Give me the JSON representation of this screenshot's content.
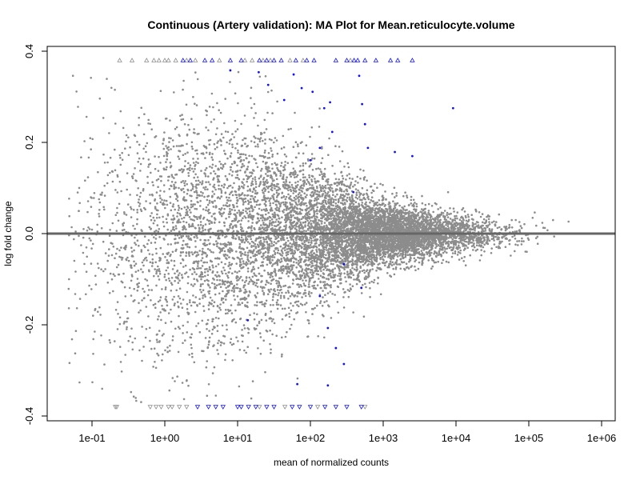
{
  "chart_data": {
    "type": "scatter",
    "title": "Continuous (Artery validation): MA Plot for Mean.reticulocyte.volume",
    "xlabel": "mean of normalized counts",
    "ylabel": "log fold change",
    "x_scale": "log10",
    "xlim": [
      0.04,
      1500000
    ],
    "ylim": [
      -0.4,
      0.4
    ],
    "x_ticks": [
      0.1,
      1,
      10,
      100,
      1000,
      10000,
      100000,
      1000000
    ],
    "x_tick_labels": [
      "1e-01",
      "1e+00",
      "1e+01",
      "1e+02",
      "1e+03",
      "1e+04",
      "1e+05",
      "1e+06"
    ],
    "y_ticks": [
      -0.4,
      -0.2,
      0.0,
      0.2,
      0.4
    ],
    "y_tick_labels": [
      "-0.4",
      "-0.2",
      "0.0",
      "0.2",
      "0.4"
    ],
    "reference_line_y": 0,
    "colors": {
      "non_significant": "#8c8c8c",
      "significant": "#1010ff",
      "reference_line": "#666666"
    },
    "clip_value": 0.38,
    "background_points": {
      "approx_count": 9000,
      "note": "gray non-significant genes, generated density"
    },
    "significant_points_log10x_lfc": [
      [
        0.9,
        0.358
      ],
      [
        1.29,
        0.354
      ],
      [
        1.42,
        0.326
      ],
      [
        1.64,
        0.293
      ],
      [
        1.77,
        0.349
      ],
      [
        1.88,
        0.319
      ],
      [
        2.03,
        0.311
      ],
      [
        2.19,
        0.275
      ],
      [
        2.27,
        0.288
      ],
      [
        2.67,
        0.346
      ],
      [
        2.71,
        0.284
      ],
      [
        2.75,
        0.24
      ],
      [
        2.79,
        0.188
      ],
      [
        3.16,
        0.179
      ],
      [
        3.4,
        0.17
      ],
      [
        3.96,
        0.275
      ],
      [
        2.0,
        0.161
      ],
      [
        2.13,
        0.188
      ],
      [
        2.3,
        0.223
      ],
      [
        2.59,
        0.091
      ],
      [
        2.7,
        -0.119
      ],
      [
        2.46,
        -0.067
      ],
      [
        2.13,
        -0.137
      ],
      [
        2.24,
        -0.207
      ],
      [
        2.35,
        -0.251
      ],
      [
        2.46,
        -0.286
      ],
      [
        1.82,
        -0.33
      ],
      [
        2.24,
        -0.333
      ],
      [
        1.14,
        -0.19
      ]
    ],
    "clipped_top_significant_log10x": [
      0.25,
      0.35,
      0.55,
      0.65,
      0.9,
      1.05,
      1.3,
      1.4,
      1.5,
      1.6,
      1.8,
      1.95,
      2.05,
      2.35,
      2.5,
      2.6,
      2.65,
      2.75,
      2.9,
      3.1,
      3.2,
      3.4
    ],
    "clipped_top_nonsignificant_log10x": [
      -0.62,
      -0.45,
      -0.25,
      -0.15,
      -0.08,
      0.0,
      0.05,
      0.15,
      0.3,
      0.42,
      0.75,
      1.1,
      1.2,
      1.35,
      1.45,
      1.72,
      1.9,
      2.55
    ],
    "clipped_bottom_significant_log10x": [
      0.45,
      0.6,
      0.7,
      0.8,
      1.0,
      1.05,
      1.15,
      1.25,
      1.4,
      1.5,
      1.75,
      1.85,
      2.0,
      2.2,
      2.35,
      2.5,
      2.7
    ],
    "clipped_bottom_nonsignificant_log10x": [
      -0.68,
      -0.66,
      -0.2,
      -0.12,
      -0.05,
      0.05,
      0.1,
      0.2,
      0.3,
      1.3,
      1.65,
      2.1,
      2.75
    ]
  }
}
